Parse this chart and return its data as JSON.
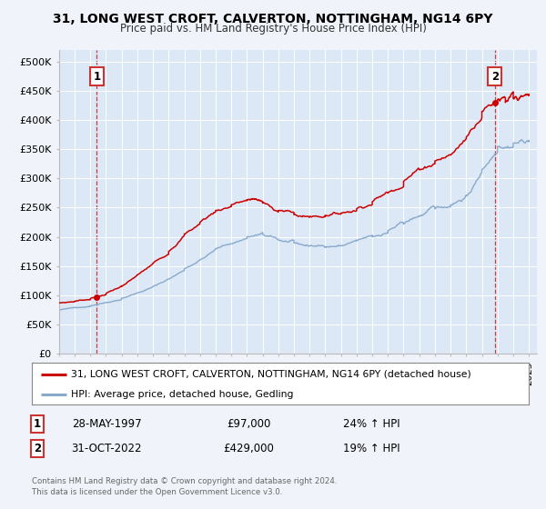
{
  "title": "31, LONG WEST CROFT, CALVERTON, NOTTINGHAM, NG14 6PY",
  "subtitle": "Price paid vs. HM Land Registry's House Price Index (HPI)",
  "legend_line1": "31, LONG WEST CROFT, CALVERTON, NOTTINGHAM, NG14 6PY (detached house)",
  "legend_line2": "HPI: Average price, detached house, Gedling",
  "red_color": "#cc0000",
  "blue_color": "#88aacc",
  "annotation1_date": "28-MAY-1997",
  "annotation1_price": "£97,000",
  "annotation1_hpi": "24% ↑ HPI",
  "annotation2_date": "31-OCT-2022",
  "annotation2_price": "£429,000",
  "annotation2_hpi": "19% ↑ HPI",
  "yticks": [
    0,
    50000,
    100000,
    150000,
    200000,
    250000,
    300000,
    350000,
    400000,
    450000,
    500000
  ],
  "ytick_labels": [
    "£0",
    "£50K",
    "£100K",
    "£150K",
    "£200K",
    "£250K",
    "£300K",
    "£350K",
    "£400K",
    "£450K",
    "£500K"
  ],
  "xlim": [
    1995.0,
    2025.5
  ],
  "ylim": [
    0,
    520000
  ],
  "point1_x": 1997.41,
  "point1_y": 97000,
  "point2_x": 2022.83,
  "point2_y": 429000,
  "background_color": "#f0f4fa",
  "plot_bg_color": "#dce8f5",
  "footer": "Contains HM Land Registry data © Crown copyright and database right 2024.\nThis data is licensed under the Open Government Licence v3.0."
}
